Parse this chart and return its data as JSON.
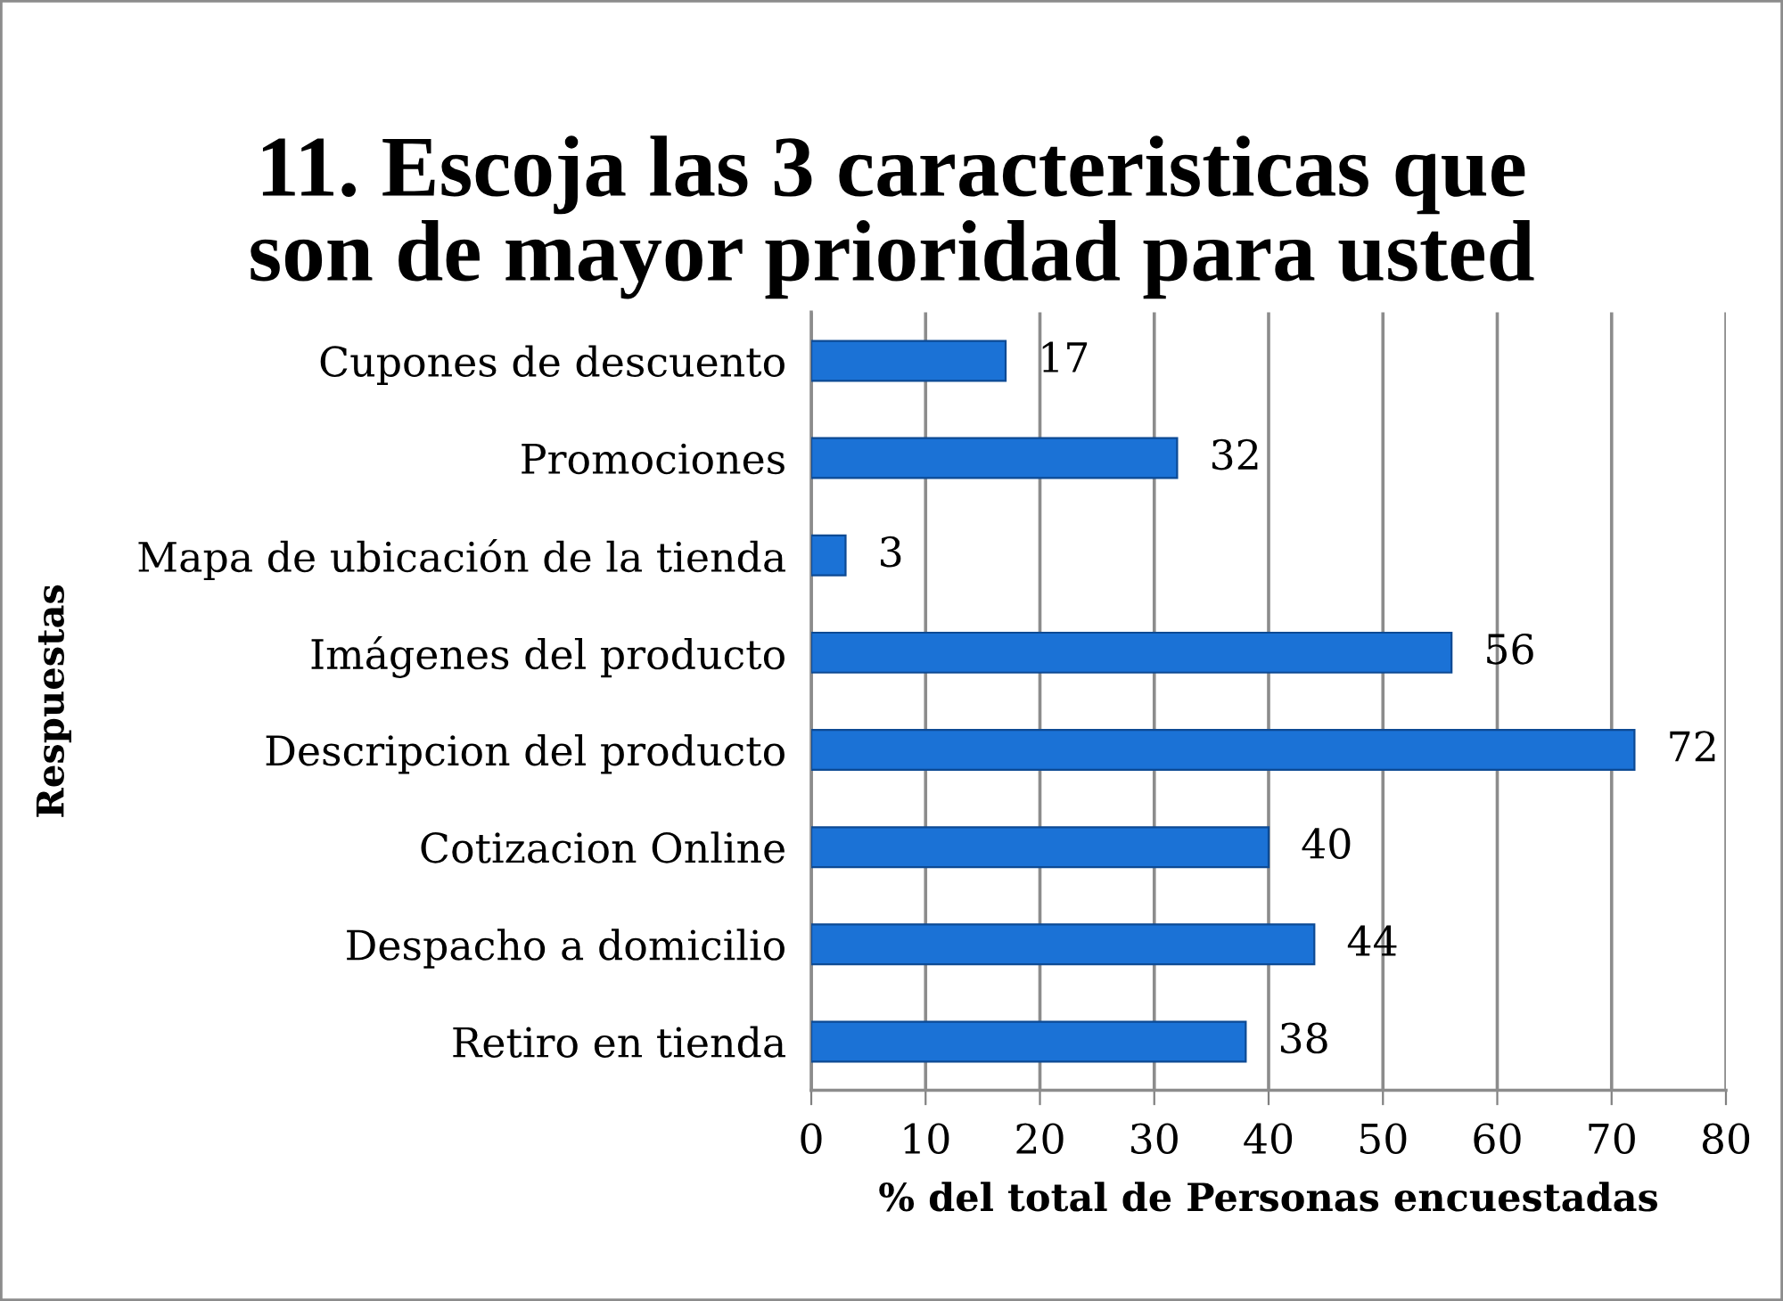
{
  "chart_data": {
    "type": "bar",
    "orientation": "horizontal",
    "title": "11. Escoja las 3 caracteristicas que son de mayor prioridad para usted",
    "xlabel": "% del total de Personas encuestadas",
    "ylabel": "Respuestas",
    "categories": [
      "Cupones de descuento",
      "Promociones",
      "Mapa de ubicación de la tienda",
      "Imágenes del producto",
      "Descripcion del producto",
      "Cotizacion Online",
      "Despacho a domicilio",
      "Retiro en tienda"
    ],
    "values": [
      17,
      32,
      3,
      56,
      72,
      40,
      44,
      38
    ],
    "color": "#1b72d6",
    "xlim": [
      0,
      80
    ],
    "xticks": [
      0,
      10,
      20,
      30,
      40,
      50,
      60,
      70,
      80
    ],
    "grid": "x",
    "data_labels": true,
    "legend": false
  }
}
